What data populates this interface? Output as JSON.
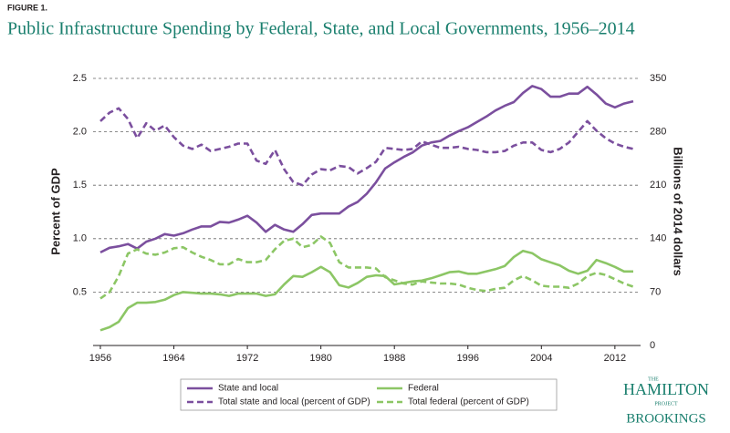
{
  "chart_data": {
    "type": "line",
    "figure_label": "FIGURE 1.",
    "title": "Public Infrastructure Spending by Federal, State, and Local Governments, 1956–2014",
    "ylabel": "Percent of GDP",
    "y2label": "Billions of 2014 dollars",
    "x": [
      1956,
      1957,
      1958,
      1959,
      1960,
      1961,
      1962,
      1963,
      1964,
      1965,
      1966,
      1967,
      1968,
      1969,
      1970,
      1971,
      1972,
      1973,
      1974,
      1975,
      1976,
      1977,
      1978,
      1979,
      1980,
      1981,
      1982,
      1983,
      1984,
      1985,
      1986,
      1987,
      1988,
      1989,
      1990,
      1991,
      1992,
      1993,
      1994,
      1995,
      1996,
      1997,
      1998,
      1999,
      2000,
      2001,
      2002,
      2003,
      2004,
      2005,
      2006,
      2007,
      2008,
      2009,
      2010,
      2011,
      2012,
      2013,
      2014
    ],
    "xlim": [
      1956,
      2014
    ],
    "xticks": [
      1956,
      1964,
      1972,
      1980,
      1988,
      1996,
      2004,
      2012
    ],
    "ylim": [
      0,
      2.5
    ],
    "yticks": [
      0.5,
      {
        "value": 1,
        "label": "1.0"
      },
      1.5,
      {
        "value": 2,
        "label": "2.0"
      },
      2.5
    ],
    "y2lim": [
      0,
      350
    ],
    "y2ticks": [
      0,
      70,
      140,
      210,
      280,
      350
    ],
    "grid": true,
    "series": [
      {
        "name": "State and local",
        "color": "#7b4f9e",
        "dash": false,
        "axis": "y2",
        "values": [
          122,
          128,
          130,
          133,
          127,
          136,
          140,
          146,
          144,
          147,
          152,
          156,
          156,
          162,
          161,
          165,
          170,
          161,
          149,
          158,
          152,
          149,
          159,
          171,
          173,
          173,
          173,
          182,
          188,
          199,
          214,
          232,
          240,
          247,
          253,
          262,
          266,
          268,
          275,
          281,
          286,
          293,
          300,
          308,
          314,
          319,
          331,
          340,
          336,
          326,
          326,
          330,
          330,
          339,
          329,
          317,
          312,
          317,
          320
        ]
      },
      {
        "name": "Federal",
        "color": "#8cc665",
        "dash": false,
        "axis": "y2",
        "values": [
          20,
          24,
          31,
          49,
          56,
          56,
          57,
          60,
          66,
          70,
          69,
          68,
          68,
          67,
          65,
          68,
          68,
          68,
          65,
          67,
          80,
          91,
          90,
          96,
          103,
          96,
          79,
          76,
          82,
          90,
          92,
          91,
          80,
          82,
          84,
          85,
          88,
          92,
          96,
          97,
          94,
          94,
          97,
          100,
          104,
          116,
          124,
          121,
          113,
          109,
          105,
          98,
          94,
          98,
          112,
          108,
          103,
          97,
          97
        ]
      },
      {
        "name": "Total state and local (percent of GDP)",
        "color": "#7b4f9e",
        "dash": true,
        "values": [
          2.1,
          2.18,
          2.22,
          2.12,
          1.94,
          2.08,
          2.01,
          2.06,
          1.95,
          1.87,
          1.84,
          1.88,
          1.82,
          1.84,
          1.86,
          1.89,
          1.89,
          1.73,
          1.7,
          1.83,
          1.65,
          1.53,
          1.5,
          1.6,
          1.65,
          1.64,
          1.68,
          1.67,
          1.61,
          1.66,
          1.72,
          1.85,
          1.84,
          1.83,
          1.84,
          1.91,
          1.88,
          1.85,
          1.85,
          1.86,
          1.84,
          1.83,
          1.81,
          1.81,
          1.82,
          1.87,
          1.9,
          1.9,
          1.83,
          1.81,
          1.84,
          1.9,
          2.0,
          2.1,
          2.01,
          1.94,
          1.89,
          1.86,
          1.84
        ]
      },
      {
        "name": "Total federal (percent of GDP)",
        "color": "#8cc665",
        "dash": true,
        "values": [
          0.44,
          0.5,
          0.65,
          0.86,
          0.9,
          0.86,
          0.85,
          0.87,
          0.91,
          0.92,
          0.87,
          0.83,
          0.8,
          0.76,
          0.76,
          0.81,
          0.78,
          0.78,
          0.8,
          0.9,
          0.98,
          1.0,
          0.92,
          0.94,
          1.02,
          0.96,
          0.78,
          0.73,
          0.73,
          0.73,
          0.72,
          0.64,
          0.61,
          0.58,
          0.57,
          0.6,
          0.59,
          0.58,
          0.58,
          0.57,
          0.54,
          0.52,
          0.51,
          0.53,
          0.54,
          0.61,
          0.65,
          0.61,
          0.56,
          0.55,
          0.55,
          0.54,
          0.58,
          0.65,
          0.68,
          0.66,
          0.62,
          0.58,
          0.55
        ]
      }
    ]
  },
  "branding": {
    "the": "THE",
    "name": "HAMILTON",
    "project": "PROJECT",
    "org": "BROOKINGS"
  }
}
